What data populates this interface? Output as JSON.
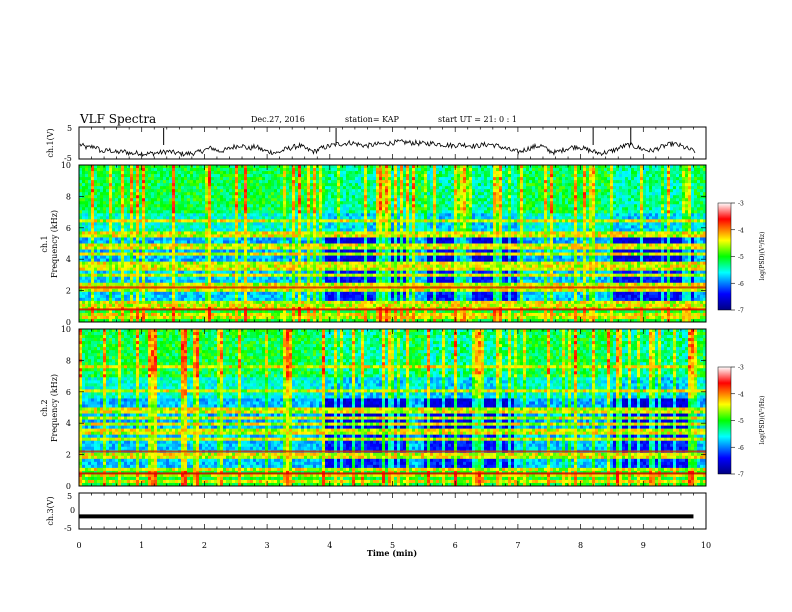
{
  "header": {
    "title": "VLF Spectra",
    "date": "Dec.27, 2016",
    "station": "station= KAP",
    "start": "start  UT =   21: 0  : 1"
  },
  "panels": {
    "ch1v_label": "ch.1(V)",
    "ch1_label": "ch.1",
    "ch2_label": "ch.2",
    "freq_label": "Frequency  (kHz)",
    "ch3v_label": "ch.3(V)",
    "colorbar_label": "log(PSD)(V²/Hz)"
  },
  "chart_data": [
    {
      "type": "line",
      "name": "ch1-voltage",
      "ylabel": "ch.1(V)",
      "ylim": [
        -5,
        5
      ],
      "yticks": [
        "5",
        "-5"
      ],
      "xlim": [
        0,
        10
      ],
      "description_values": "noisy trace fluctuating around -1 V with bursts",
      "y": [
        -0.5,
        -1.5,
        -1.0,
        -2.8,
        -2.2,
        -3.0,
        -2.6,
        -3.3,
        -3.1,
        -3.4,
        -3.2,
        -3.0,
        -2.6,
        -3.1,
        -3.4,
        -3.3,
        -3.0,
        -2.2,
        -1.5,
        -2.6,
        -2.1,
        -1.2,
        -0.6,
        -1.8,
        -1.1,
        -2.3,
        -2.8,
        -3.1,
        -2.0,
        -1.4,
        -0.8,
        -2.0,
        -2.7,
        -1.6,
        -1.0,
        -0.4,
        -0.2,
        0.1,
        -0.4,
        -0.9,
        -0.6,
        -0.3,
        -0.2,
        0.2,
        0.3,
        0.1,
        0.0,
        -0.2,
        -0.1,
        -0.3,
        -0.6,
        -0.8,
        -0.5,
        -0.7,
        -1.0,
        -0.6,
        -0.4,
        -0.9,
        -1.6,
        -2.4,
        -2.8,
        -1.9,
        -1.2,
        -0.8,
        -2.4,
        -3.0,
        -2.1,
        -1.4,
        -1.1,
        -1.9,
        -2.6,
        -3.2,
        -2.9,
        -2.2,
        -1.2,
        -0.5,
        -1.3,
        -2.0,
        -2.5,
        -1.6,
        -0.8,
        -0.2,
        -0.9,
        -1.8,
        -2.6
      ]
    },
    {
      "type": "heatmap",
      "name": "ch1-spectrogram",
      "title": "ch.1",
      "ylabel": "Frequency  (kHz)",
      "xlim": [
        0,
        10
      ],
      "ylim": [
        0,
        10
      ],
      "yticks": [
        "0",
        "2",
        "4",
        "6",
        "8",
        "10"
      ],
      "colorbar": {
        "range": [
          -7,
          -3
        ],
        "ticks": [
          "-3",
          "-4",
          "-5",
          "-6",
          "-7"
        ],
        "label": "log(PSD)(V²/Hz)"
      },
      "lines_khz": [
        0.3,
        0.5,
        0.8,
        1.0,
        1.2,
        2.0,
        2.2,
        2.3,
        3.0,
        3.3,
        3.5,
        3.8,
        4.4,
        4.8,
        5.4,
        5.6,
        6.5
      ],
      "quiet_intervals_min": [
        [
          3.9,
          5.2
        ],
        [
          5.5,
          7.0
        ],
        [
          8.5,
          9.8
        ]
      ]
    },
    {
      "type": "heatmap",
      "name": "ch2-spectrogram",
      "title": "ch.2",
      "ylabel": "Frequency  (kHz)",
      "xlim": [
        0,
        10
      ],
      "ylim": [
        0,
        10
      ],
      "yticks": [
        "0",
        "2",
        "4",
        "6",
        "8",
        "10"
      ],
      "colorbar": {
        "range": [
          -7,
          -3
        ],
        "ticks": [
          "-3",
          "-4",
          "-5",
          "-6",
          "-7"
        ],
        "label": "log(PSD)(V²/Hz)"
      },
      "lines_khz": [
        0.3,
        0.6,
        1.0,
        1.8,
        2.0,
        3.0,
        3.3,
        3.6,
        4.0,
        4.4,
        4.8,
        6.0,
        7.6
      ],
      "quiet_intervals_min": [
        [
          3.9,
          5.2
        ],
        [
          5.5,
          7.0
        ],
        [
          8.5,
          9.8
        ]
      ]
    },
    {
      "type": "line",
      "name": "ch3-voltage",
      "ylabel": "ch.3(V)",
      "ylim": [
        -5,
        5
      ],
      "yticks": [
        "5",
        "0",
        "-5"
      ],
      "xlim": [
        0,
        9.8
      ],
      "y_constant": -1.5
    }
  ],
  "x_axis": {
    "label": "Time  (min)",
    "ticks": [
      "0",
      "1",
      "2",
      "3",
      "4",
      "5",
      "6",
      "7",
      "8",
      "9",
      "10"
    ]
  },
  "colors": {
    "background": "#ffffff",
    "axis": "#000000"
  }
}
